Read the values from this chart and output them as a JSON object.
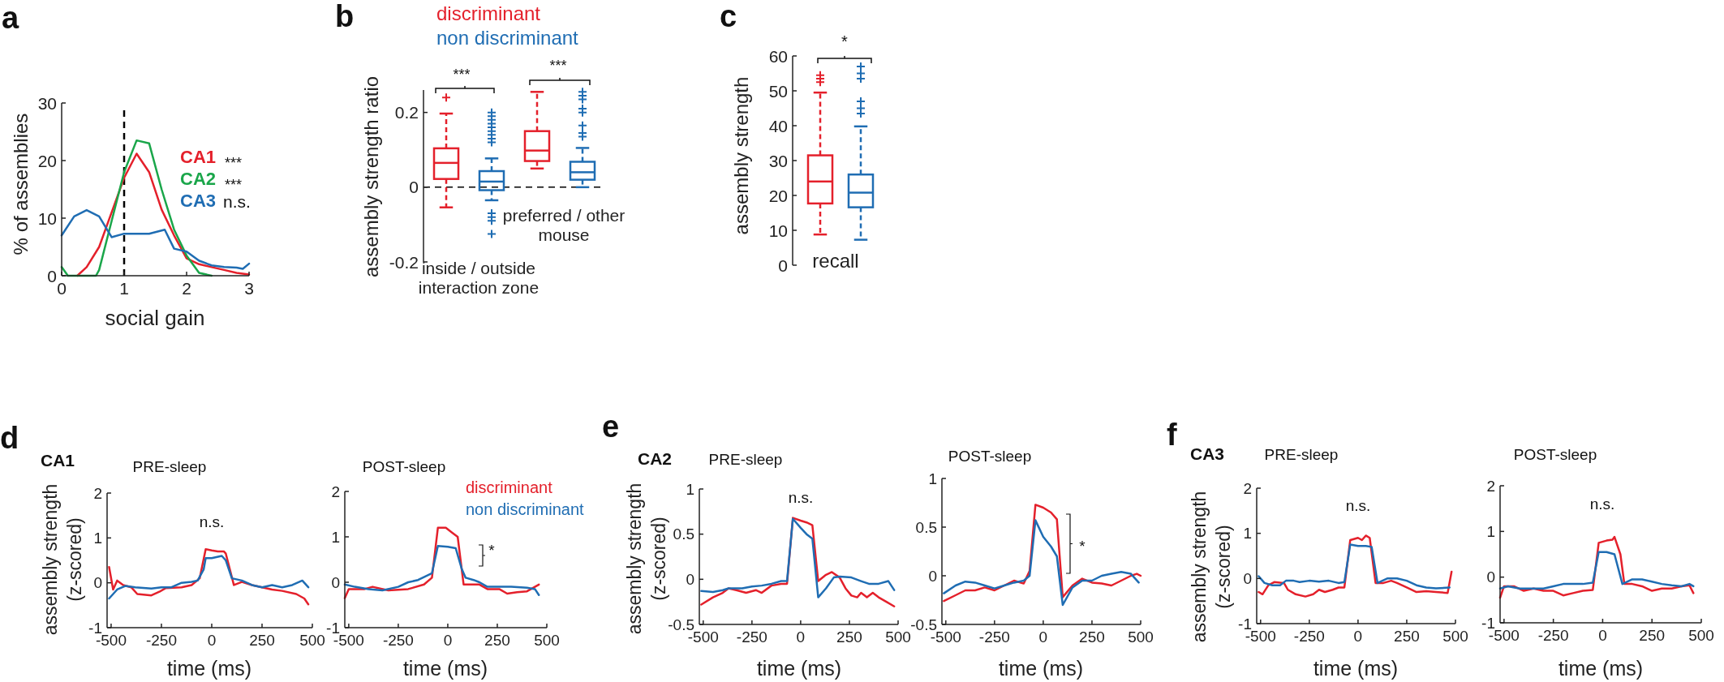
{
  "chart_data": [
    {
      "type": "line",
      "xlabel": "social gain",
      "ylabel": "% of assemblies",
      "xlim": [
        0,
        3
      ],
      "xticks": [
        0,
        1,
        2,
        3
      ],
      "ylim": [
        0,
        30
      ],
      "yticks": [
        0,
        10,
        20,
        30
      ],
      "legend": "right",
      "annotations": [
        "a",
        "***",
        "***",
        "n.s."
      ],
      "ref_lines": [
        {
          "axis": "x",
          "value": 1,
          "line_style": "dashed",
          "color": "#000000"
        }
      ],
      "series": [
        {
          "name": "CA1",
          "color": "#e4202b",
          "x": [
            0.25,
            0.4,
            0.6,
            0.8,
            1.0,
            1.2,
            1.4,
            1.6,
            1.8,
            2.0,
            2.2,
            2.4,
            2.6,
            2.8,
            3.0
          ],
          "values": [
            0,
            1.5,
            5,
            11,
            17,
            21.2,
            18,
            11.5,
            7,
            3,
            2,
            1.5,
            1,
            0.5,
            0.2
          ]
        },
        {
          "name": "CA2",
          "color": "#1aa64a",
          "x": [
            0,
            0.1,
            0.55,
            0.6,
            0.8,
            1.0,
            1.2,
            1.4,
            1.6,
            1.8,
            2.0,
            2.2,
            2.4
          ],
          "values": [
            1.5,
            0,
            0,
            1,
            9.5,
            18,
            23.5,
            23,
            15,
            8,
            3.5,
            0.5,
            0
          ]
        },
        {
          "name": "CA3",
          "color": "#1f6db3",
          "x": [
            0,
            0.2,
            0.4,
            0.6,
            0.7,
            0.8,
            1.0,
            1.2,
            1.4,
            1.65,
            1.8,
            2.0,
            2.2,
            2.4,
            2.6,
            2.8,
            2.9,
            3.0
          ],
          "values": [
            7,
            10.3,
            11.4,
            10.3,
            8.5,
            6.7,
            7.3,
            7.3,
            7.3,
            8,
            4.7,
            4.2,
            2.6,
            1.8,
            1.5,
            1.4,
            1.2,
            2.1
          ]
        }
      ]
    },
    {
      "type": "box",
      "ylabel": "assembly strength ratio",
      "categories": [
        "inside / outside\ninteraction zone",
        "preferred / other\nmouse"
      ],
      "ylim": [
        -0.2,
        0.26
      ],
      "yticks": [
        -0.2,
        0,
        0.2
      ],
      "legend": "top",
      "annotations": [
        "b",
        "***",
        "***"
      ],
      "ref_lines": [
        {
          "axis": "y",
          "value": 0,
          "line_style": "dashed",
          "color": "#000000"
        }
      ],
      "series": [
        {
          "name": "discriminant",
          "color": "#e4202b",
          "boxes": [
            {
              "low": -0.054,
              "q1": 0.022,
              "median": 0.065,
              "q3": 0.104,
              "high": 0.197,
              "outliers": [
                0.24
              ]
            },
            {
              "low": 0.05,
              "q1": 0.07,
              "median": 0.098,
              "q3": 0.15,
              "high": 0.255
            }
          ]
        },
        {
          "name": "non discriminant",
          "color": "#1f6db3",
          "boxes": [
            {
              "low": -0.035,
              "q1": -0.008,
              "median": 0.015,
              "q3": 0.043,
              "high": 0.077,
              "outliers": [
                0.12,
                0.13,
                0.14,
                0.15,
                0.16,
                0.17,
                0.18,
                0.19,
                0.2,
                -0.07,
                -0.08,
                -0.09,
                -0.125
              ]
            },
            {
              "low": 0,
              "q1": 0.02,
              "median": 0.04,
              "q3": 0.068,
              "high": 0.105,
              "outliers": [
                0.135,
                0.145,
                0.165,
                0.2,
                0.21,
                0.235,
                0.245,
                0.255
              ]
            }
          ]
        }
      ]
    },
    {
      "type": "box",
      "ylabel": "assembly strength",
      "categories": [
        "recall"
      ],
      "ylim": [
        0,
        60
      ],
      "yticks": [
        0,
        10,
        20,
        30,
        40,
        50,
        60
      ],
      "annotations": [
        "c",
        "*"
      ],
      "series": [
        {
          "color": "#e4202b",
          "boxes": [
            {
              "low": 8.8,
              "q1": 17.7,
              "median": 24,
              "q3": 31.5,
              "high": 49.5,
              "outliers": [
                52.5,
                53.5,
                54.5
              ]
            }
          ]
        },
        {
          "color": "#1f6db3",
          "boxes": [
            {
              "low": 7.3,
              "q1": 16.6,
              "median": 20.8,
              "q3": 26,
              "high": 39.8,
              "outliers": [
                43.5,
                45,
                47,
                53.5,
                55,
                57
              ]
            }
          ]
        }
      ]
    },
    {
      "type": "line",
      "title": "CA1",
      "subtitle": "PRE-sleep",
      "xlabel": "time (ms)",
      "ylabel": "assembly strength\n(z-scored)",
      "xlim": [
        -520,
        500
      ],
      "xticks": [
        -500,
        -250,
        0,
        250,
        500
      ],
      "ylim": [
        -1,
        2
      ],
      "yticks": [
        -1,
        0,
        1,
        2
      ],
      "annotations": [
        "d",
        "n.s."
      ],
      "series": [
        {
          "color": "#e4202b",
          "x": [
            -510,
            -490,
            -470,
            -440,
            -400,
            -370,
            -300,
            -260,
            -230,
            -150,
            -100,
            -60,
            -30,
            0,
            30,
            60,
            70,
            110,
            150,
            200,
            250,
            300,
            350,
            420,
            460,
            480
          ],
          "values": [
            0.35,
            -0.15,
            0.05,
            -0.05,
            -0.1,
            -0.25,
            -0.28,
            -0.2,
            -0.12,
            -0.1,
            -0.05,
            0.1,
            0.75,
            0.72,
            0.7,
            0.7,
            0.65,
            -0.05,
            0.02,
            -0.05,
            -0.1,
            -0.15,
            -0.18,
            -0.25,
            -0.35,
            -0.48
          ]
        },
        {
          "color": "#1f6db3",
          "x": [
            -510,
            -470,
            -430,
            -380,
            -300,
            -250,
            -200,
            -150,
            -100,
            -70,
            -40,
            -30,
            0,
            50,
            70,
            100,
            150,
            200,
            250,
            300,
            350,
            400,
            450,
            480
          ],
          "values": [
            -0.35,
            -0.15,
            -0.07,
            -0.1,
            -0.13,
            -0.1,
            -0.1,
            0,
            0.02,
            0.05,
            0.3,
            0.55,
            0.55,
            0.6,
            0.5,
            0.1,
            0.05,
            -0.05,
            -0.1,
            -0.05,
            -0.1,
            -0.05,
            0.05,
            -0.1
          ]
        }
      ]
    },
    {
      "type": "line",
      "subtitle": "POST-sleep",
      "xlabel": "time (ms)",
      "xlim": [
        -520,
        500
      ],
      "xticks": [
        -500,
        -250,
        0,
        250,
        500
      ],
      "ylim": [
        -1,
        2
      ],
      "yticks": [
        -1,
        0,
        1,
        2
      ],
      "legend": "top right",
      "annotations": [
        "*"
      ],
      "series": [
        {
          "name": "discriminant",
          "color": "#e4202b",
          "x": [
            -520,
            -500,
            -420,
            -380,
            -300,
            -200,
            -120,
            -80,
            -50,
            -10,
            20,
            50,
            80,
            120,
            160,
            200,
            260,
            300,
            350,
            400,
            440,
            460
          ],
          "values": [
            -0.35,
            -0.15,
            -0.15,
            -0.1,
            -0.18,
            -0.15,
            -0.05,
            0.1,
            1.2,
            1.2,
            1.1,
            1.0,
            -0.05,
            -0.05,
            -0.05,
            -0.15,
            -0.15,
            -0.25,
            -0.22,
            -0.2,
            -0.1,
            -0.05
          ]
        },
        {
          "name": "non discriminant",
          "color": "#1f6db3",
          "x": [
            -520,
            -470,
            -400,
            -330,
            -250,
            -200,
            -150,
            -80,
            -50,
            0,
            40,
            70,
            90,
            130,
            160,
            200,
            260,
            320,
            400,
            440,
            460
          ],
          "values": [
            -0.05,
            -0.1,
            -0.15,
            -0.18,
            -0.1,
            0,
            0.05,
            0.2,
            0.8,
            0.78,
            0.75,
            0.3,
            0.1,
            0.05,
            0,
            -0.1,
            -0.1,
            -0.1,
            -0.12,
            -0.15,
            -0.28
          ]
        }
      ]
    },
    {
      "type": "line",
      "title": "CA2",
      "subtitle": "PRE-sleep",
      "xlabel": "time (ms)",
      "ylabel": "assembly strength\n(z-scored)",
      "xlim": [
        -520,
        500
      ],
      "xticks": [
        -500,
        -250,
        0,
        250,
        500
      ],
      "ylim": [
        -0.5,
        1
      ],
      "yticks": [
        -0.5,
        0,
        0.5,
        1
      ],
      "annotations": [
        "e",
        "n.s."
      ],
      "series": [
        {
          "color": "#e4202b",
          "x": [
            -510,
            -450,
            -400,
            -370,
            -330,
            -280,
            -230,
            -200,
            -150,
            -100,
            -70,
            -40,
            0,
            30,
            60,
            90,
            130,
            160,
            200,
            230,
            260,
            290,
            310,
            340,
            370,
            400,
            440,
            480
          ],
          "values": [
            -0.28,
            -0.2,
            -0.15,
            -0.1,
            -0.12,
            -0.15,
            -0.12,
            -0.15,
            -0.07,
            -0.05,
            -0.05,
            0.68,
            0.65,
            0.63,
            0.6,
            -0.02,
            0.05,
            0.08,
            0.02,
            -0.1,
            -0.18,
            -0.2,
            -0.15,
            -0.2,
            -0.15,
            -0.2,
            -0.25,
            -0.3
          ]
        },
        {
          "color": "#1f6db3",
          "x": [
            -510,
            -450,
            -400,
            -370,
            -300,
            -250,
            -200,
            -150,
            -100,
            -70,
            -40,
            0,
            30,
            60,
            90,
            130,
            170,
            200,
            260,
            310,
            350,
            400,
            450,
            480
          ],
          "values": [
            -0.13,
            -0.14,
            -0.12,
            -0.1,
            -0.1,
            -0.08,
            -0.07,
            -0.05,
            -0.02,
            -0.02,
            0.67,
            0.57,
            0.5,
            0.45,
            -0.2,
            -0.1,
            0.02,
            0.03,
            0.02,
            -0.02,
            -0.05,
            -0.05,
            -0.02,
            -0.12
          ]
        }
      ]
    },
    {
      "type": "line",
      "subtitle": "POST-sleep",
      "xlabel": "time (ms)",
      "xlim": [
        -520,
        500
      ],
      "xticks": [
        -500,
        -250,
        0,
        250,
        500
      ],
      "ylim": [
        -0.5,
        1
      ],
      "yticks": [
        -0.5,
        0,
        0.5,
        1
      ],
      "annotations": [
        "*"
      ],
      "series": [
        {
          "color": "#e4202b",
          "x": [
            -510,
            -450,
            -400,
            -350,
            -300,
            -250,
            -200,
            -150,
            -100,
            -70,
            -40,
            0,
            40,
            70,
            100,
            150,
            200,
            250,
            300,
            350,
            400,
            450,
            480,
            500
          ],
          "values": [
            -0.26,
            -0.2,
            -0.15,
            -0.15,
            -0.12,
            -0.15,
            -0.1,
            -0.05,
            -0.08,
            0.05,
            0.73,
            0.7,
            0.65,
            0.58,
            -0.22,
            -0.1,
            -0.03,
            -0.07,
            -0.08,
            -0.1,
            -0.05,
            0,
            0.02,
            0
          ]
        },
        {
          "color": "#1f6db3",
          "x": [
            -510,
            -450,
            -400,
            -350,
            -300,
            -250,
            -200,
            -150,
            -100,
            -70,
            -40,
            0,
            40,
            70,
            100,
            150,
            200,
            250,
            300,
            350,
            400,
            450,
            490
          ],
          "values": [
            -0.18,
            -0.1,
            -0.06,
            -0.07,
            -0.1,
            -0.13,
            -0.1,
            -0.07,
            -0.05,
            0,
            0.57,
            0.4,
            0.3,
            0.2,
            -0.3,
            -0.12,
            -0.05,
            -0.05,
            0,
            0.02,
            0.04,
            0.02,
            -0.07
          ]
        }
      ]
    },
    {
      "type": "line",
      "title": "CA3",
      "subtitle": "PRE-sleep",
      "xlabel": "time (ms)",
      "ylabel": "assembly strength\n(z-scored)",
      "xlim": [
        -520,
        500
      ],
      "xticks": [
        -500,
        -250,
        0,
        250,
        500
      ],
      "ylim": [
        -1,
        2
      ],
      "yticks": [
        -1,
        0,
        1,
        2
      ],
      "annotations": [
        "f",
        "n.s."
      ],
      "series": [
        {
          "color": "#e4202b",
          "x": [
            -510,
            -490,
            -460,
            -430,
            -380,
            -360,
            -320,
            -270,
            -230,
            -200,
            -170,
            -130,
            -100,
            -70,
            -40,
            0,
            20,
            40,
            60,
            90,
            130,
            170,
            200,
            250,
            300,
            350,
            400,
            460,
            480
          ],
          "values": [
            -0.3,
            -0.35,
            -0.15,
            -0.08,
            -0.1,
            -0.25,
            -0.35,
            -0.4,
            -0.35,
            -0.25,
            -0.3,
            -0.25,
            -0.2,
            -0.2,
            0.85,
            0.9,
            0.85,
            0.95,
            0.9,
            -0.1,
            -0.1,
            -0.05,
            -0.1,
            -0.2,
            -0.3,
            -0.28,
            -0.3,
            -0.32,
            0.15
          ]
        },
        {
          "color": "#1f6db3",
          "x": [
            -510,
            -480,
            -440,
            -400,
            -370,
            -330,
            -300,
            -250,
            -200,
            -150,
            -100,
            -70,
            -40,
            0,
            40,
            70,
            100,
            150,
            200,
            250,
            300,
            350,
            400,
            470
          ],
          "values": [
            0.05,
            -0.1,
            -0.15,
            -0.15,
            -0.05,
            -0.05,
            -0.08,
            -0.05,
            -0.07,
            -0.05,
            -0.1,
            -0.08,
            0.75,
            0.72,
            0.72,
            0.7,
            -0.1,
            0,
            0,
            -0.05,
            -0.15,
            -0.2,
            -0.22,
            -0.2
          ]
        }
      ]
    },
    {
      "type": "line",
      "subtitle": "POST-sleep",
      "xlabel": "time (ms)",
      "xlim": [
        -520,
        500
      ],
      "xticks": [
        -500,
        -250,
        0,
        250,
        500
      ],
      "ylim": [
        -1,
        2
      ],
      "yticks": [
        -1,
        0,
        1,
        2
      ],
      "annotations": [
        "n.s."
      ],
      "series": [
        {
          "color": "#e4202b",
          "x": [
            -520,
            -500,
            -450,
            -400,
            -350,
            -300,
            -250,
            -200,
            -150,
            -100,
            -50,
            -20,
            20,
            50,
            60,
            90,
            110,
            150,
            200,
            250,
            300,
            350,
            400,
            440,
            460
          ],
          "values": [
            -0.45,
            -0.2,
            -0.2,
            -0.3,
            -0.25,
            -0.3,
            -0.3,
            -0.4,
            -0.35,
            -0.3,
            -0.28,
            0.75,
            0.8,
            0.82,
            0.88,
            0.5,
            -0.15,
            -0.15,
            -0.2,
            -0.3,
            -0.25,
            -0.25,
            -0.2,
            -0.18,
            -0.35
          ]
        },
        {
          "color": "#1f6db3",
          "x": [
            -520,
            -480,
            -420,
            -350,
            -300,
            -250,
            -200,
            -150,
            -100,
            -50,
            -20,
            20,
            60,
            100,
            150,
            200,
            250,
            300,
            350,
            400,
            440,
            460
          ],
          "values": [
            -0.25,
            -0.2,
            -0.25,
            -0.25,
            -0.25,
            -0.2,
            -0.15,
            -0.15,
            -0.15,
            -0.12,
            0.55,
            0.55,
            0.5,
            -0.15,
            -0.05,
            -0.05,
            -0.1,
            -0.15,
            -0.18,
            -0.2,
            -0.15,
            -0.2
          ]
        }
      ]
    }
  ]
}
